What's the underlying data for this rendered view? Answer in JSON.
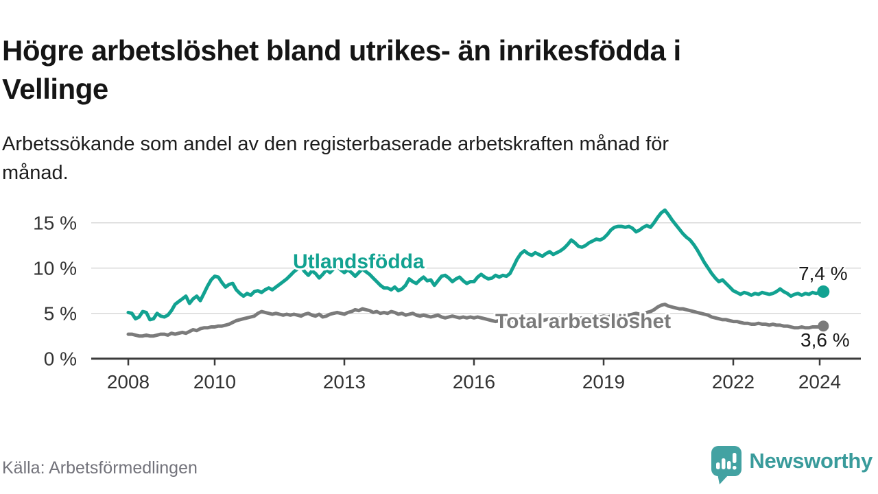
{
  "header": {
    "title_line1": "Högre arbetslöshet bland utrikes- än inrikesfödda i",
    "title_line2": "Vellinge",
    "subtitle_line1": "Arbetssökande som andel av den registerbaserade arbetskraften månad för",
    "subtitle_line2": "månad."
  },
  "footer": {
    "source": "Källa: Arbetsförmedlingen",
    "brand": "Newsworthy",
    "brand_color": "#399b9b",
    "logo_color": "#43a2a2"
  },
  "chart_data": {
    "type": "line",
    "unit": "%",
    "x_start_year": 2008,
    "x_step_months": 1,
    "x_tick_values": [
      2008,
      2010,
      2013,
      2016,
      2019,
      2022,
      2024
    ],
    "x_tick_labels": [
      "2008",
      "2010",
      "2013",
      "2016",
      "2019",
      "2022",
      "2024"
    ],
    "y_tick_values": [
      0,
      5,
      10,
      15
    ],
    "y_tick_labels": [
      "0 %",
      "5 %",
      "10 %",
      "15 %"
    ],
    "ylim": [
      0,
      17
    ],
    "grid": "horizontal-only",
    "legend_position": "inline-labels",
    "axis_color": "#3b3b3b",
    "grid_color": "#d9d9d9",
    "series": [
      {
        "name": "Utlandsfödda",
        "color": "#12a291",
        "end_label": "7,4 %",
        "end_value": 7.4,
        "values": [
          5.1,
          5.0,
          4.4,
          4.6,
          5.2,
          5.1,
          4.3,
          4.4,
          5.0,
          4.7,
          4.6,
          4.8,
          5.3,
          6.0,
          6.3,
          6.6,
          6.9,
          6.1,
          6.6,
          6.9,
          6.4,
          7.2,
          8.0,
          8.7,
          9.1,
          9.0,
          8.4,
          7.9,
          8.2,
          8.3,
          7.6,
          7.2,
          6.9,
          7.2,
          7.0,
          7.4,
          7.5,
          7.3,
          7.6,
          7.8,
          7.6,
          7.9,
          8.2,
          8.5,
          8.8,
          9.2,
          9.6,
          9.9,
          10.1,
          9.6,
          9.2,
          9.7,
          9.4,
          8.9,
          9.3,
          9.8,
          9.5,
          9.9,
          10.2,
          9.8,
          9.5,
          9.8,
          9.5,
          9.1,
          9.5,
          9.9,
          9.6,
          9.3,
          8.9,
          8.5,
          8.1,
          7.8,
          7.8,
          7.6,
          7.9,
          7.5,
          7.7,
          8.1,
          8.8,
          8.5,
          8.3,
          8.7,
          9.0,
          8.6,
          8.7,
          8.1,
          8.6,
          9.1,
          9.2,
          8.9,
          8.5,
          8.8,
          9.0,
          8.6,
          8.3,
          8.5,
          8.5,
          9.0,
          9.3,
          9.0,
          8.8,
          8.9,
          9.2,
          9.0,
          9.2,
          9.1,
          9.4,
          10.2,
          11.0,
          11.6,
          11.9,
          11.6,
          11.4,
          11.7,
          11.5,
          11.3,
          11.6,
          11.8,
          11.5,
          11.7,
          11.9,
          12.2,
          12.6,
          13.1,
          12.8,
          12.4,
          12.3,
          12.5,
          12.8,
          13.0,
          13.2,
          13.1,
          13.3,
          13.7,
          14.2,
          14.5,
          14.6,
          14.6,
          14.5,
          14.6,
          14.4,
          14.0,
          14.2,
          14.5,
          14.7,
          14.5,
          15.0,
          15.6,
          16.1,
          16.4,
          15.9,
          15.3,
          14.8,
          14.3,
          13.8,
          13.4,
          13.1,
          12.6,
          12.0,
          11.3,
          10.6,
          10.0,
          9.4,
          8.9,
          8.5,
          8.7,
          8.3,
          7.9,
          7.5,
          7.3,
          7.1,
          7.3,
          7.2,
          7.0,
          7.2,
          7.1,
          7.3,
          7.2,
          7.1,
          7.2,
          7.4,
          7.7,
          7.4,
          7.2,
          6.9,
          7.1,
          7.2,
          7.0,
          7.2,
          7.1,
          7.3,
          7.2,
          7.3,
          7.4
        ]
      },
      {
        "name": "Total arbetslöshet",
        "color": "#7b7b7b",
        "end_label": "3,6 %",
        "end_value": 3.6,
        "values": [
          2.7,
          2.7,
          2.6,
          2.5,
          2.5,
          2.6,
          2.5,
          2.5,
          2.6,
          2.7,
          2.7,
          2.6,
          2.8,
          2.7,
          2.8,
          2.9,
          2.8,
          3.0,
          3.2,
          3.1,
          3.3,
          3.4,
          3.4,
          3.5,
          3.5,
          3.6,
          3.6,
          3.7,
          3.8,
          4.0,
          4.2,
          4.3,
          4.4,
          4.5,
          4.6,
          4.7,
          5.0,
          5.2,
          5.1,
          5.0,
          4.9,
          5.0,
          4.9,
          4.8,
          4.9,
          4.8,
          4.9,
          4.8,
          4.7,
          4.9,
          5.0,
          4.8,
          4.7,
          4.9,
          4.6,
          4.7,
          4.9,
          5.0,
          5.1,
          5.0,
          4.9,
          5.1,
          5.2,
          5.4,
          5.3,
          5.5,
          5.4,
          5.3,
          5.1,
          5.2,
          5.0,
          5.1,
          5.0,
          5.2,
          5.1,
          4.9,
          5.0,
          4.8,
          4.9,
          5.0,
          4.8,
          4.7,
          4.8,
          4.7,
          4.6,
          4.7,
          4.8,
          4.6,
          4.5,
          4.6,
          4.7,
          4.6,
          4.5,
          4.6,
          4.5,
          4.6,
          4.5,
          4.6,
          4.5,
          4.4,
          4.3,
          4.2,
          4.1,
          4.2,
          4.3,
          4.2,
          4.3,
          4.2,
          4.3,
          4.4,
          4.3,
          4.2,
          4.3,
          4.2,
          4.1,
          4.2,
          4.3,
          4.4,
          4.3,
          4.4,
          4.5,
          4.4,
          4.3,
          4.4,
          4.3,
          4.4,
          4.5,
          4.4,
          4.5,
          4.6,
          4.5,
          4.6,
          4.7,
          4.6,
          4.7,
          4.8,
          4.7,
          4.8,
          4.9,
          4.8,
          4.9,
          5.0,
          4.9,
          5.0,
          5.1,
          5.2,
          5.4,
          5.7,
          5.9,
          6.0,
          5.8,
          5.7,
          5.6,
          5.5,
          5.5,
          5.4,
          5.3,
          5.2,
          5.1,
          5.0,
          4.9,
          4.8,
          4.6,
          4.5,
          4.4,
          4.3,
          4.3,
          4.2,
          4.1,
          4.1,
          4.0,
          3.9,
          3.9,
          3.8,
          3.8,
          3.9,
          3.8,
          3.8,
          3.7,
          3.8,
          3.7,
          3.7,
          3.6,
          3.6,
          3.5,
          3.4,
          3.4,
          3.5,
          3.4,
          3.4,
          3.5,
          3.5,
          3.5,
          3.6
        ]
      }
    ]
  }
}
